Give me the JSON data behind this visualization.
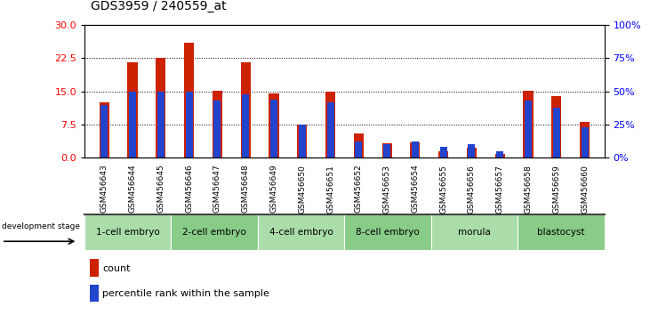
{
  "title": "GDS3959 / 240559_at",
  "samples": [
    "GSM456643",
    "GSM456644",
    "GSM456645",
    "GSM456646",
    "GSM456647",
    "GSM456648",
    "GSM456649",
    "GSM456650",
    "GSM456651",
    "GSM456652",
    "GSM456653",
    "GSM456654",
    "GSM456655",
    "GSM456656",
    "GSM456657",
    "GSM456658",
    "GSM456659",
    "GSM456660"
  ],
  "counts": [
    12.5,
    21.5,
    22.5,
    26.0,
    15.2,
    21.5,
    14.5,
    7.5,
    15.0,
    5.5,
    3.2,
    3.5,
    1.5,
    2.2,
    0.8,
    15.2,
    14.0,
    8.0
  ],
  "percentiles": [
    40,
    50,
    50,
    50,
    43,
    48,
    44,
    25,
    42,
    12,
    10,
    12,
    8,
    10,
    5,
    43,
    38,
    23
  ],
  "stages": [
    {
      "label": "1-cell embryo",
      "start": 0,
      "end": 3
    },
    {
      "label": "2-cell embryo",
      "start": 3,
      "end": 6
    },
    {
      "label": "4-cell embryo",
      "start": 6,
      "end": 9
    },
    {
      "label": "8-cell embryo",
      "start": 9,
      "end": 12
    },
    {
      "label": "morula",
      "start": 12,
      "end": 15
    },
    {
      "label": "blastocyst",
      "start": 15,
      "end": 18
    }
  ],
  "stage_colors": [
    "#aaddaa",
    "#88cc88",
    "#aaddaa",
    "#88cc88",
    "#aaddaa",
    "#88cc88"
  ],
  "ylim_left": [
    0,
    30
  ],
  "ylim_right": [
    0,
    100
  ],
  "yticks_left": [
    0,
    7.5,
    15,
    22.5,
    30
  ],
  "yticks_right": [
    0,
    25,
    50,
    75,
    100
  ],
  "bar_color_red": "#cc2200",
  "bar_color_blue": "#2244cc",
  "title_fontsize": 10,
  "red_bar_width": 0.35,
  "blue_bar_width": 0.25,
  "grid_color": "black",
  "grid_linestyle": "dotted",
  "xtick_bg_color": "#c8c8c8",
  "stage_border_color": "#444444"
}
